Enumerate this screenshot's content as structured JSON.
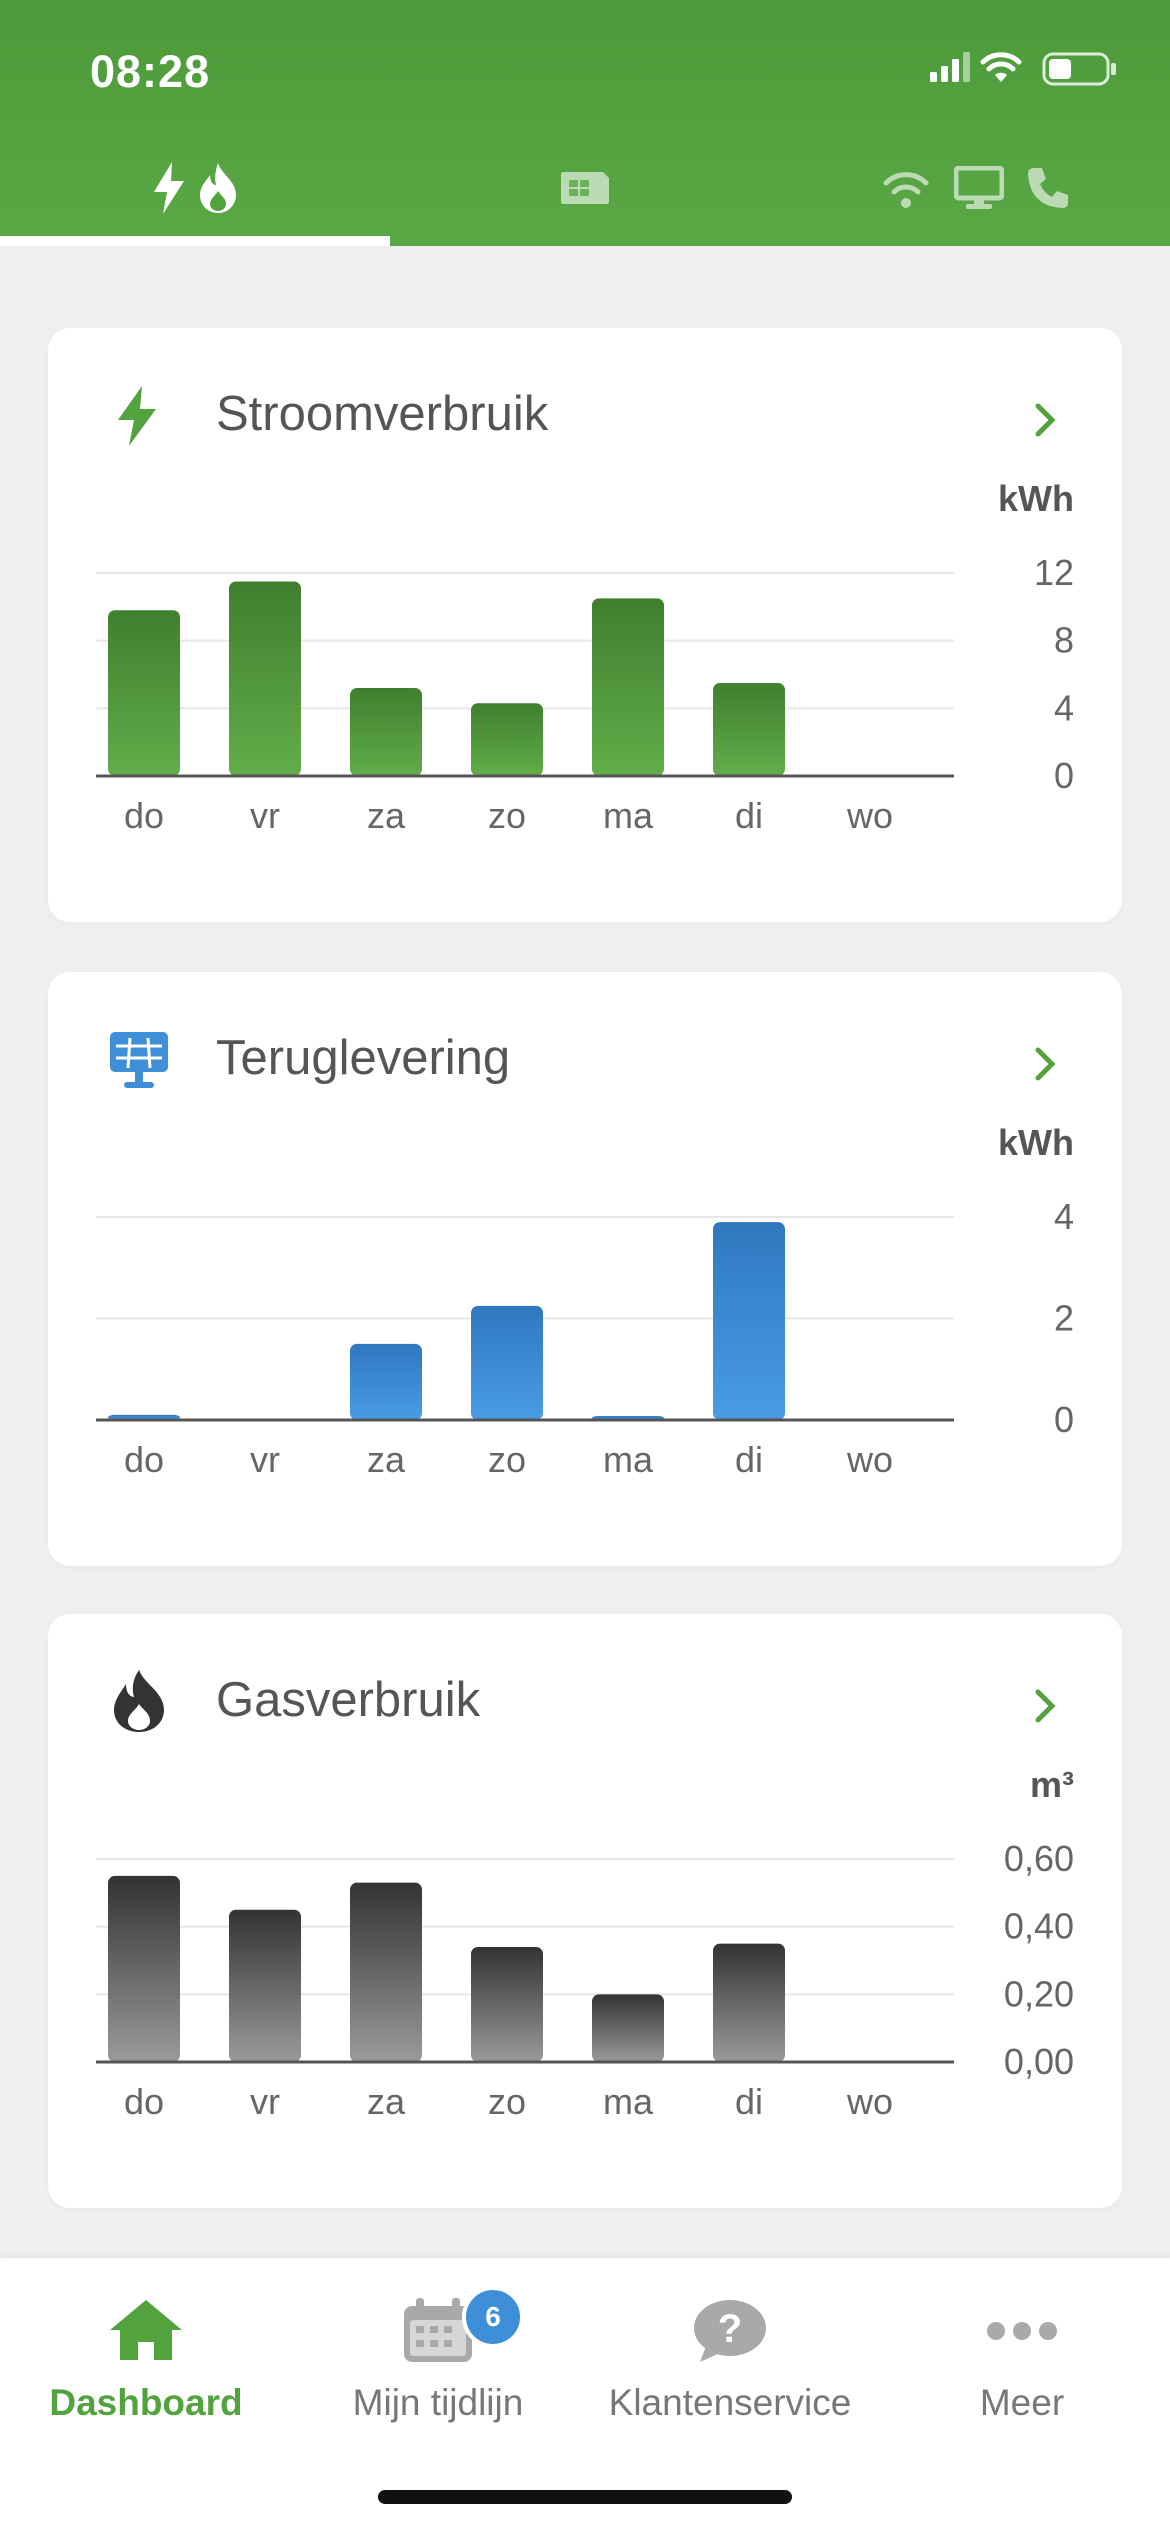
{
  "status_bar": {
    "time": "08:28"
  },
  "tabs": [
    {
      "name": "energy",
      "icons": [
        "bolt-icon",
        "flame-icon"
      ],
      "active": true
    },
    {
      "name": "tv",
      "icons": [
        "smartcard-icon"
      ],
      "active": false
    },
    {
      "name": "internet",
      "icons": [
        "wifi-icon",
        "monitor-icon",
        "phone-icon"
      ],
      "active": false
    }
  ],
  "cards": [
    {
      "title": "Stroomverbruik",
      "icon": "bolt-icon",
      "unit": "kWh"
    },
    {
      "title": "Teruglevering",
      "icon": "solar-panel-icon",
      "unit": "kWh"
    },
    {
      "title": "Gasverbruik",
      "icon": "flame-icon",
      "unit": "m³"
    }
  ],
  "chart_data": [
    {
      "type": "bar",
      "title": "Stroomverbruik",
      "categories": [
        "do",
        "vr",
        "za",
        "zo",
        "ma",
        "di",
        "wo"
      ],
      "values": [
        9.8,
        11.5,
        5.2,
        4.3,
        10.5,
        5.5,
        null
      ],
      "ylabel": "kWh",
      "yticks": [
        "12",
        "8",
        "4",
        "0"
      ],
      "ylim": [
        0,
        12
      ],
      "colors": {
        "top": "#3f7f2e",
        "bottom": "#62ad4a"
      }
    },
    {
      "type": "bar",
      "title": "Teruglevering",
      "categories": [
        "do",
        "vr",
        "za",
        "zo",
        "ma",
        "di",
        "wo"
      ],
      "values": [
        0.1,
        0,
        1.5,
        2.25,
        0.08,
        3.9,
        null
      ],
      "ylabel": "kWh",
      "yticks": [
        "4",
        "2",
        "0"
      ],
      "ylim": [
        0,
        4
      ],
      "colors": {
        "top": "#2f78c0",
        "bottom": "#4a9be6"
      }
    },
    {
      "type": "bar",
      "title": "Gasverbruik",
      "categories": [
        "do",
        "vr",
        "za",
        "zo",
        "ma",
        "di",
        "wo"
      ],
      "values": [
        0.55,
        0.45,
        0.53,
        0.34,
        0.2,
        0.35,
        null
      ],
      "ylabel": "m³",
      "yticks": [
        "0,60",
        "0,40",
        "0,20",
        "0,00"
      ],
      "ylim": [
        0,
        0.6
      ],
      "colors": {
        "top": "#333333",
        "bottom": "#9a9a9a"
      }
    }
  ],
  "bottom_nav": {
    "items": [
      {
        "label": "Dashboard",
        "icon": "home-icon",
        "active": true
      },
      {
        "label": "Mijn tijdlijn",
        "icon": "calendar-icon",
        "badge": "6",
        "active": false
      },
      {
        "label": "Klantenservice",
        "icon": "help-bubble-icon",
        "active": false
      },
      {
        "label": "Meer",
        "icon": "more-dots-icon",
        "active": false
      }
    ]
  },
  "colors": {
    "header_green": "#52a23d",
    "accent_green": "#52a23d",
    "solar_blue": "#3f8fd8",
    "gas_dark": "#333333",
    "badge_blue": "#3f8fd8"
  }
}
